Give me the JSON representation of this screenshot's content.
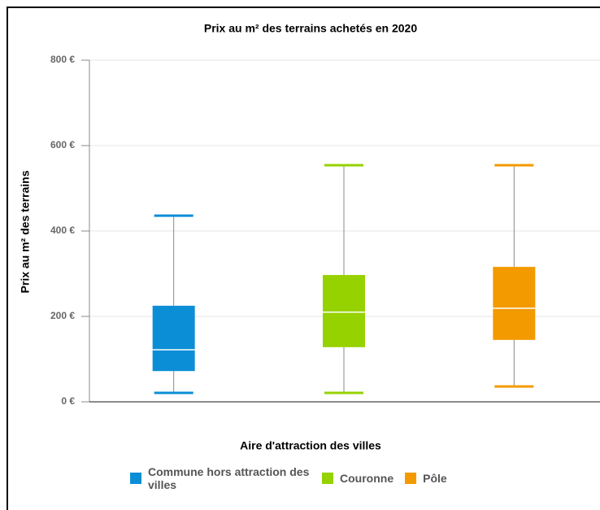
{
  "chart_data": {
    "type": "box",
    "title": "Prix au m² des terrains achetés en 2020",
    "y_label": "Prix au m² des terrains",
    "x_label": "Aire d'attraction des villes",
    "ylim": [
      0,
      800
    ],
    "yticks": [
      {
        "value": 0,
        "label": "0 €"
      },
      {
        "value": 200,
        "label": "200 €"
      },
      {
        "value": 400,
        "label": "400 €"
      },
      {
        "value": 600,
        "label": "600 €"
      },
      {
        "value": 800,
        "label": "800 €"
      }
    ],
    "grid": true,
    "series": [
      {
        "name": "Commune hors attraction des villes",
        "color": "#0c8ed6",
        "low": 21,
        "q1": 72,
        "median": 122,
        "q3": 225,
        "high": 436
      },
      {
        "name": "Couronne",
        "color": "#96d200",
        "low": 21,
        "q1": 128,
        "median": 210,
        "q3": 297,
        "high": 554
      },
      {
        "name": "Pôle",
        "color": "#f39a00",
        "low": 36,
        "q1": 145,
        "median": 219,
        "q3": 316,
        "high": 554
      }
    ]
  }
}
